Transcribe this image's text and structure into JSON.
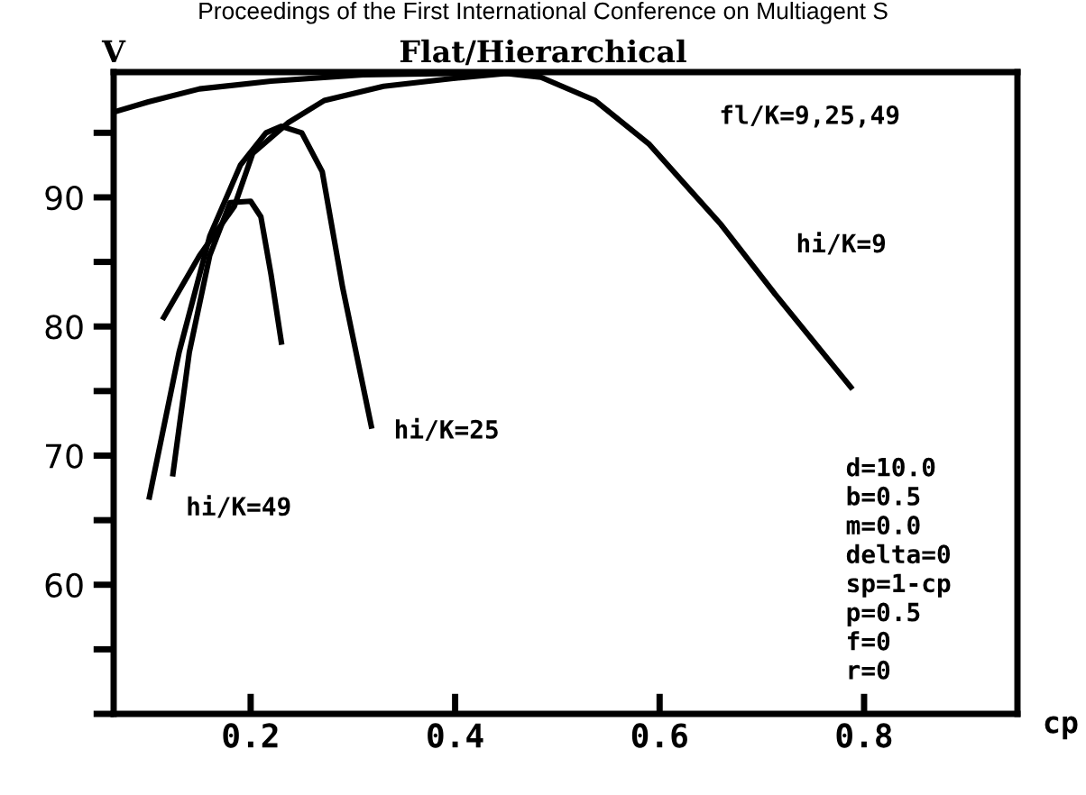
{
  "chart_data": {
    "type": "line",
    "title": "Flat/Hierarchical",
    "xlabel": "cp",
    "ylabel": "V",
    "xlim": [
      0.066,
      0.95
    ],
    "ylim": [
      50,
      99.7
    ],
    "xticks": [
      0.2,
      0.4,
      0.6,
      0.8
    ],
    "yticks": [
      {
        "value": 50,
        "label": null
      },
      {
        "value": 55,
        "label": null
      },
      60,
      {
        "value": 65,
        "label": null
      },
      70,
      {
        "value": 75,
        "label": null
      },
      80,
      {
        "value": 85,
        "label": null
      },
      90,
      {
        "value": 95,
        "label": null
      }
    ],
    "grid": false,
    "legend": false,
    "marker": "none",
    "line_style": "solid",
    "series": [
      {
        "color": "#000000",
        "x": [
          0.066,
          0.1,
          0.15,
          0.22,
          0.31,
          0.4,
          0.45
        ],
        "values": [
          96.6,
          97.4,
          98.4,
          99.0,
          99.5,
          99.6,
          99.6
        ]
      },
      {
        "color": "#000000",
        "x": [
          0.115,
          0.15,
          0.184,
          0.202,
          0.237,
          0.272,
          0.33,
          0.396,
          0.45,
          0.484,
          0.537,
          0.59,
          0.66,
          0.713,
          0.787
        ],
        "values": [
          80.7,
          85.5,
          89.3,
          93.4,
          95.8,
          97.5,
          98.6,
          99.2,
          99.6,
          99.3,
          97.5,
          94.1,
          87.9,
          82.5,
          75.3
        ]
      },
      {
        "color": "#000000",
        "x": [
          0.101,
          0.13,
          0.16,
          0.19,
          0.215,
          0.23,
          0.25,
          0.27,
          0.29,
          0.318
        ],
        "values": [
          66.8,
          78,
          87,
          92.5,
          95,
          95.5,
          95,
          92,
          83,
          72.3
        ]
      },
      {
        "color": "#000000",
        "x": [
          0.124,
          0.14,
          0.16,
          0.18,
          0.2,
          0.21,
          0.22,
          0.23
        ],
        "values": [
          68.6,
          78,
          85.5,
          89.6,
          89.7,
          88.5,
          84,
          78.8
        ]
      }
    ],
    "annotations": [
      "fl/K=9,25,49",
      "hi/K=9",
      "hi/K=25",
      "hi/K=49",
      "d=10.0",
      "b=0.5",
      "m=0.0",
      "delta=0",
      "sp=1-cp",
      "p=0.5",
      "f=0",
      "r=0",
      "Proceedings of the First International Conference on Multiagent S"
    ]
  }
}
